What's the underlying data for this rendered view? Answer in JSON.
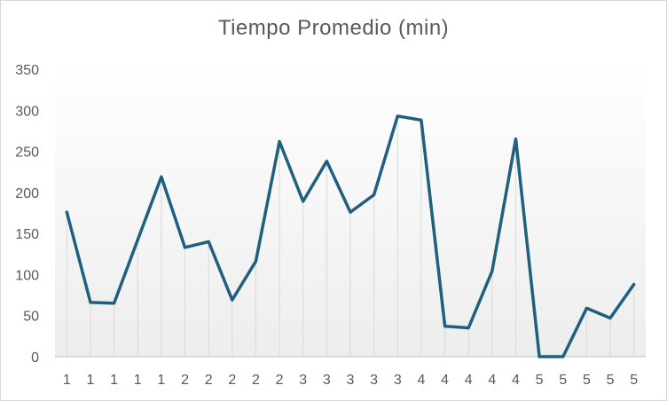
{
  "chart_data": {
    "type": "line",
    "title": "Tiempo Promedio (min)",
    "xlabel": "",
    "ylabel": "",
    "ylim": [
      0,
      350
    ],
    "y_ticks": [
      0,
      50,
      100,
      150,
      200,
      250,
      300,
      350
    ],
    "categories": [
      "1",
      "1",
      "1",
      "1",
      "1",
      "2",
      "2",
      "2",
      "2",
      "2",
      "3",
      "3",
      "3",
      "3",
      "3",
      "4",
      "4",
      "4",
      "4",
      "4",
      "5",
      "5",
      "5",
      "5",
      "5"
    ],
    "values": [
      176,
      66,
      65,
      142,
      219,
      133,
      140,
      69,
      116,
      262,
      189,
      238,
      176,
      197,
      293,
      288,
      37,
      35,
      104,
      265,
      0,
      0,
      59,
      47,
      88
    ],
    "grid": "vertical drop lines at each point",
    "legend": "none",
    "colors": {
      "line": "#1f5f7f",
      "drop_line": "#d9d9d9",
      "axis": "#bfbfbf",
      "plot_background_top": "#ffffff",
      "plot_background_bottom": "#ededed"
    }
  }
}
